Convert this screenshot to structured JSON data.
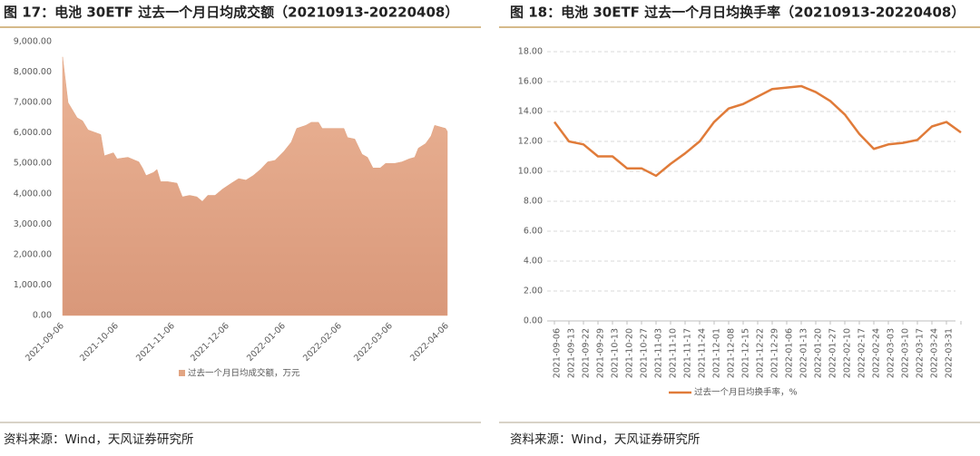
{
  "chart_data": [
    {
      "type": "area",
      "title": "图 17：电池 30ETF 过去一个月日均成交额（20210913-20220408）",
      "x": [
        "2021-09-06",
        "2021-09-09",
        "2021-09-14",
        "2021-09-17",
        "2021-09-20",
        "2021-09-27",
        "2021-09-29",
        "2021-10-04",
        "2021-10-06",
        "2021-10-12",
        "2021-10-18",
        "2021-10-20",
        "2021-10-22",
        "2021-10-26",
        "2021-10-28",
        "2021-10-30",
        "2021-11-03",
        "2021-11-08",
        "2021-11-11",
        "2021-11-15",
        "2021-11-19",
        "2021-11-22",
        "2021-11-25",
        "2021-11-29",
        "2021-12-03",
        "2021-12-08",
        "2021-12-12",
        "2021-12-16",
        "2021-12-20",
        "2021-12-24",
        "2021-12-28",
        "2022-01-01",
        "2022-01-06",
        "2022-01-10",
        "2022-01-13",
        "2022-01-18",
        "2022-01-21",
        "2022-01-25",
        "2022-01-27",
        "2022-02-03",
        "2022-02-08",
        "2022-02-10",
        "2022-02-14",
        "2022-02-18",
        "2022-02-21",
        "2022-02-24",
        "2022-02-28",
        "2022-03-03",
        "2022-03-08",
        "2022-03-12",
        "2022-03-16",
        "2022-03-19",
        "2022-03-21",
        "2022-03-25",
        "2022-03-28",
        "2022-03-30",
        "2022-04-02",
        "2022-04-05",
        "2022-04-06"
      ],
      "series": [
        {
          "name": "过去一个月日均成交额，万元",
          "color": "#e2a583",
          "values": [
            8500,
            7000,
            6500,
            6400,
            6100,
            5950,
            5250,
            5350,
            5150,
            5200,
            5050,
            4850,
            4600,
            4700,
            4800,
            4400,
            4400,
            4350,
            3900,
            3950,
            3900,
            3750,
            3950,
            3950,
            4150,
            4350,
            4500,
            4450,
            4600,
            4800,
            5050,
            5100,
            5400,
            5700,
            6150,
            6250,
            6350,
            6350,
            6150,
            6150,
            6150,
            5850,
            5800,
            5300,
            5200,
            4850,
            4850,
            5000,
            5000,
            5050,
            5150,
            5200,
            5500,
            5650,
            5900,
            6250,
            6200,
            6150,
            6050
          ]
        }
      ],
      "xlim": [
        "2021-09-06",
        "2022-04-06"
      ],
      "xticks": [
        "2021-09-06",
        "2021-10-06",
        "2021-11-06",
        "2021-12-06",
        "2022-01-06",
        "2022-02-06",
        "2022-03-06",
        "2022-04-06"
      ],
      "ylim": [
        0,
        9000
      ],
      "yticks": [
        {
          "value": 0,
          "label": "0.00"
        },
        {
          "value": 1000,
          "label": "1,000.00"
        },
        {
          "value": 2000,
          "label": "2,000.00"
        },
        {
          "value": 3000,
          "label": "3,000.00"
        },
        {
          "value": 4000,
          "label": "4,000.00"
        },
        {
          "value": 5000,
          "label": "5,000.00"
        },
        {
          "value": 6000,
          "label": "6,000.00"
        },
        {
          "value": 7000,
          "label": "7,000.00"
        },
        {
          "value": 8000,
          "label": "8,000.00"
        },
        {
          "value": 9000,
          "label": "9,000.00"
        }
      ],
      "grid": false,
      "source": "资料来源：Wind，天风证券研究所"
    },
    {
      "type": "line",
      "title": "图 18：电池 30ETF 过去一个月日均换手率（20210913-20220408）",
      "categories": [
        "2021-09-06",
        "2021-09-13",
        "2021-09-22",
        "2021-09-29",
        "2021-10-13",
        "2021-10-20",
        "2021-10-27",
        "2021-11-03",
        "2021-11-10",
        "2021-11-17",
        "2021-11-24",
        "2021-12-01",
        "2021-12-08",
        "2021-12-15",
        "2021-12-22",
        "2021-12-29",
        "2022-01-06",
        "2022-01-13",
        "2022-01-20",
        "2022-01-27",
        "2022-02-10",
        "2022-02-17",
        "2022-02-24",
        "2022-03-03",
        "2022-03-10",
        "2022-03-17",
        "2022-03-24",
        "2022-03-31",
        null
      ],
      "series": [
        {
          "name": "过去一个月日均换手率，%",
          "color": "#e07b39",
          "values": [
            13.3,
            12.0,
            11.8,
            11.0,
            11.0,
            10.2,
            10.2,
            9.7,
            10.5,
            11.2,
            12.0,
            13.3,
            14.2,
            14.5,
            15.0,
            15.5,
            15.6,
            15.7,
            15.3,
            14.7,
            13.8,
            12.5,
            11.5,
            11.8,
            11.9,
            12.1,
            13.0,
            13.3,
            12.6
          ]
        }
      ],
      "ylim": [
        0,
        18
      ],
      "yticks": [
        {
          "value": 0,
          "label": "0.00"
        },
        {
          "value": 2,
          "label": "2.00"
        },
        {
          "value": 4,
          "label": "4.00"
        },
        {
          "value": 6,
          "label": "6.00"
        },
        {
          "value": 8,
          "label": "8.00"
        },
        {
          "value": 10,
          "label": "10.00"
        },
        {
          "value": 12,
          "label": "12.00"
        },
        {
          "value": 14,
          "label": "14.00"
        },
        {
          "value": 16,
          "label": "16.00"
        },
        {
          "value": 18,
          "label": "18.00"
        }
      ],
      "grid": true,
      "source": "资料来源：Wind，天风证券研究所"
    }
  ]
}
